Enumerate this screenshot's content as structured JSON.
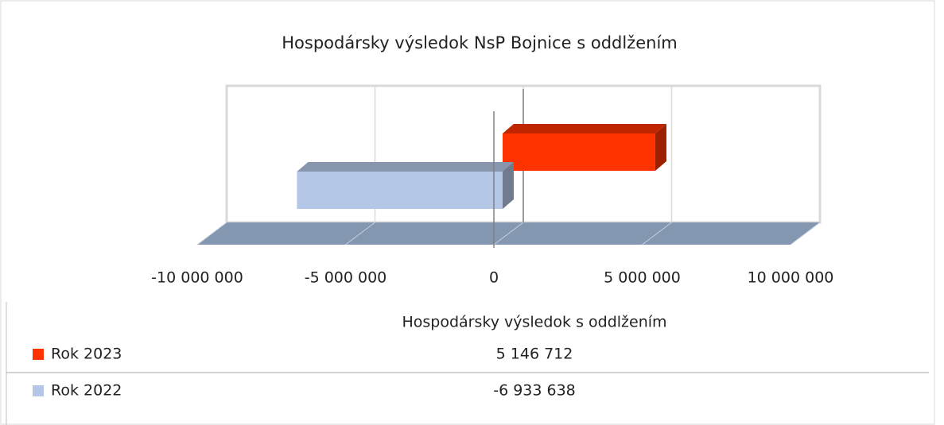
{
  "chart_data": {
    "type": "bar",
    "orientation": "horizontal",
    "title": "Hospodársky výsledok NsP Bojnice s oddlžením",
    "categories": [
      "Hospodársky výsledok s oddlžením"
    ],
    "series": [
      {
        "name": "Rok 2023",
        "color": "#ff3300",
        "values": [
          5146712
        ],
        "value_labels": [
          "5 146 712"
        ]
      },
      {
        "name": "Rok 2022",
        "color": "#b4c7e7",
        "values": [
          -6933638
        ],
        "value_labels": [
          "-6 933 638"
        ]
      }
    ],
    "xlim": [
      -10000000,
      10000000
    ],
    "xticks": [
      {
        "value": -10000000,
        "label": "-10 000 000"
      },
      {
        "value": -5000000,
        "label": "-5 000 000"
      },
      0,
      {
        "value": 5000000,
        "label": "5 000 000"
      },
      {
        "value": 10000000,
        "label": "10 000 000"
      }
    ],
    "grid": true
  }
}
